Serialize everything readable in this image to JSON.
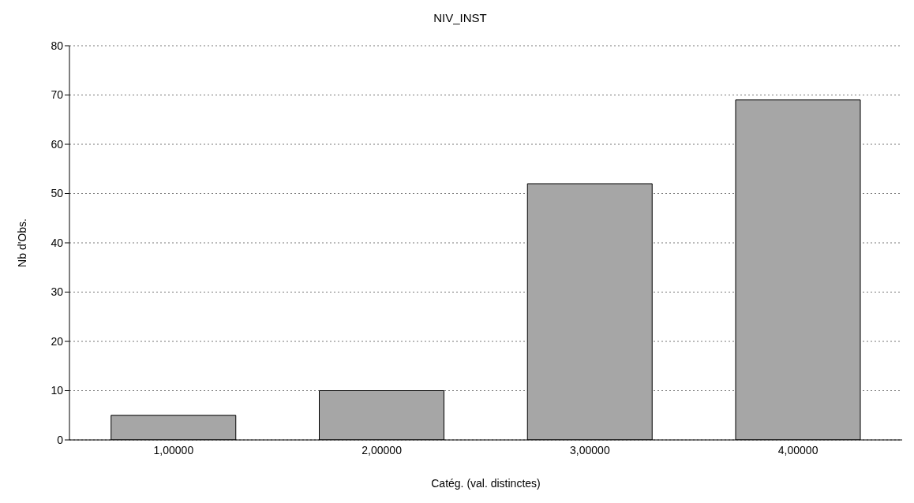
{
  "chart_data": {
    "type": "bar",
    "title": "NIV_INST",
    "xlabel": "Catég. (val. distinctes)",
    "ylabel": "Nb d'Obs.",
    "categories": [
      "1,00000",
      "2,00000",
      "3,00000",
      "4,00000"
    ],
    "values": [
      5,
      10,
      52,
      69
    ],
    "color": "#a6a6a6",
    "ylim": [
      0,
      80
    ],
    "yticks": [
      0,
      10,
      20,
      30,
      40,
      50,
      60,
      70,
      80
    ],
    "grid": "y"
  }
}
